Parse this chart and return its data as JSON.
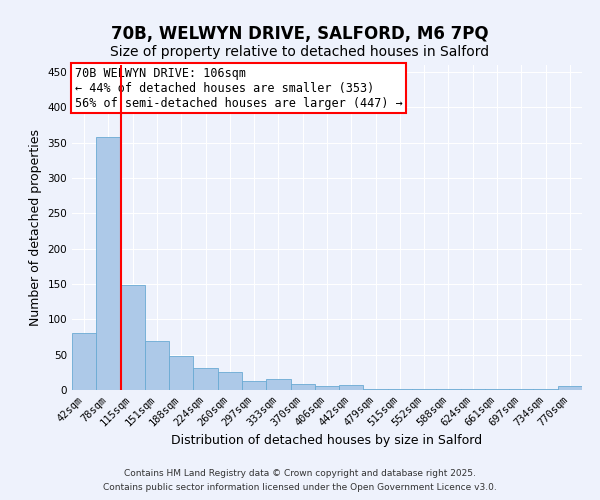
{
  "title_line1": "70B, WELWYN DRIVE, SALFORD, M6 7PQ",
  "title_line2": "Size of property relative to detached houses in Salford",
  "xlabel": "Distribution of detached houses by size in Salford",
  "ylabel": "Number of detached properties",
  "categories": [
    "42sqm",
    "78sqm",
    "115sqm",
    "151sqm",
    "188sqm",
    "224sqm",
    "260sqm",
    "297sqm",
    "333sqm",
    "370sqm",
    "406sqm",
    "442sqm",
    "479sqm",
    "515sqm",
    "552sqm",
    "588sqm",
    "624sqm",
    "661sqm",
    "697sqm",
    "734sqm",
    "770sqm"
  ],
  "values": [
    80,
    358,
    149,
    70,
    48,
    31,
    25,
    13,
    15,
    9,
    5,
    7,
    2,
    2,
    1,
    1,
    1,
    2,
    1,
    1,
    5
  ],
  "bar_color": "#adc9e8",
  "bar_edge_color": "#6aaad4",
  "red_line_x": 1.5,
  "annotation_text_line1": "70B WELWYN DRIVE: 106sqm",
  "annotation_text_line2": "← 44% of detached houses are smaller (353)",
  "annotation_text_line3": "56% of semi-detached houses are larger (447) →",
  "ylim": [
    0,
    460
  ],
  "yticks": [
    0,
    50,
    100,
    150,
    200,
    250,
    300,
    350,
    400,
    450
  ],
  "footer_line1": "Contains HM Land Registry data © Crown copyright and database right 2025.",
  "footer_line2": "Contains public sector information licensed under the Open Government Licence v3.0.",
  "background_color": "#eef2fc",
  "grid_color": "#ffffff",
  "title_fontsize": 12,
  "subtitle_fontsize": 10,
  "axis_label_fontsize": 9,
  "tick_fontsize": 7.5,
  "annotation_fontsize": 8.5,
  "footer_fontsize": 6.5
}
